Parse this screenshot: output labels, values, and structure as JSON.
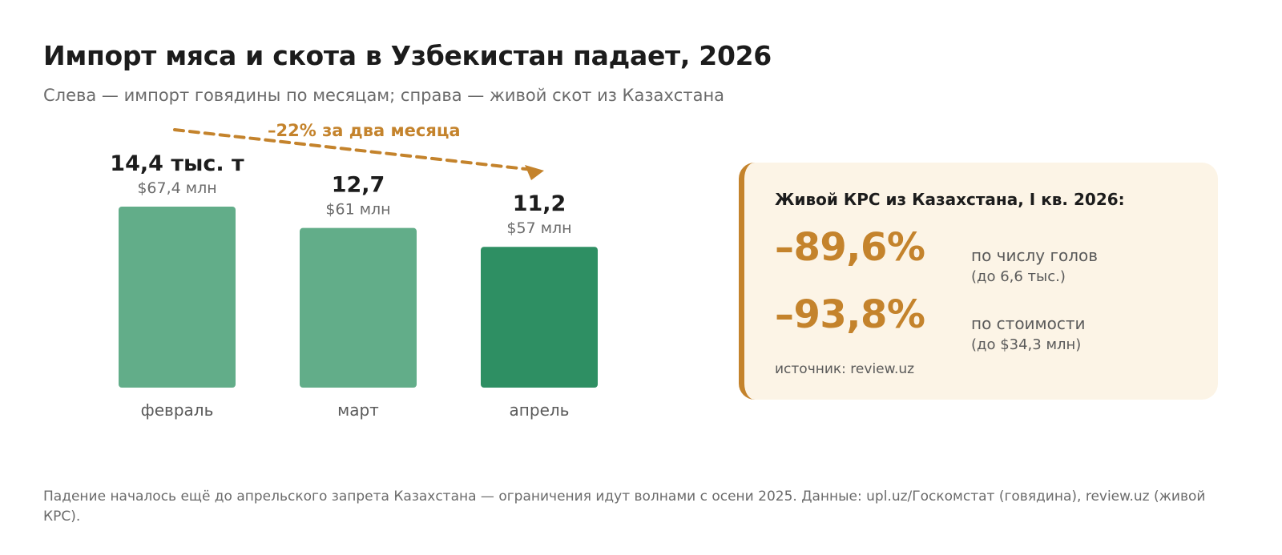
{
  "header": {
    "title": "Импорт мяса и скота в Узбекистан падает, 2026",
    "subtitle": "Слева — импорт говядины по месяцам; справа — живой скот из Казахстана"
  },
  "chart_data": {
    "type": "bar",
    "categories": [
      "февраль",
      "март",
      "апрель"
    ],
    "values": [
      14.4,
      12.7,
      11.2
    ],
    "value_labels": [
      "14,4 тыс. т",
      "12,7",
      "11,2"
    ],
    "secondary_labels": [
      "$67,4 млн",
      "$61 млн",
      "$57 млн"
    ],
    "unit": "тыс. т",
    "ylim": [
      0,
      14.4
    ],
    "grid": false,
    "highlight_index": 2,
    "colors": {
      "bar": "#62ad89",
      "bar_highlight": "#2e8f63",
      "trend": "#c4832c"
    },
    "annotation": {
      "text": "–22% за два месяца",
      "from_category": "февраль",
      "to_category": "апрель"
    }
  },
  "card": {
    "title": "Живой КРС из Казахстана, I кв. 2026:",
    "metrics": [
      {
        "value": "–89,6%",
        "label": "по числу голов",
        "note": "(до 6,6 тыс.)"
      },
      {
        "value": "–93,8%",
        "label": "по стоимости",
        "note": "(до $34,3 млн)"
      }
    ],
    "source": "источник: review.uz",
    "accent_color": "#c4832c",
    "background_color": "#fcf4e6"
  },
  "footnote": "Падение началось ещё до апрельского запрета Казахстана — ограничения идут волнами с осени 2025. Данные: upl.uz/Госкомстат (говядина), review.uz (живой КРС)."
}
